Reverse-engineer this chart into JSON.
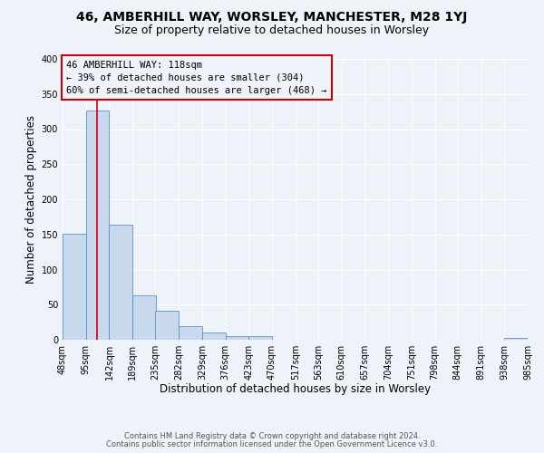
{
  "title": "46, AMBERHILL WAY, WORSLEY, MANCHESTER, M28 1YJ",
  "subtitle": "Size of property relative to detached houses in Worsley",
  "xlabel": "Distribution of detached houses by size in Worsley",
  "ylabel": "Number of detached properties",
  "bar_color": "#c9d9ed",
  "bar_edge_color": "#5b8fc9",
  "background_color": "#eef2f9",
  "grid_color": "#ffffff",
  "annotation_box_edge": "#cc0000",
  "red_line_x": 118,
  "annotation_lines": [
    "46 AMBERHILL WAY: 118sqm",
    "← 39% of detached houses are smaller (304)",
    "60% of semi-detached houses are larger (468) →"
  ],
  "bin_edges": [
    48,
    95,
    142,
    189,
    235,
    282,
    329,
    376,
    423,
    470,
    517,
    563,
    610,
    657,
    704,
    751,
    798,
    844,
    891,
    938,
    985
  ],
  "bin_counts": [
    151,
    327,
    164,
    63,
    41,
    20,
    10,
    5,
    5,
    0,
    0,
    0,
    0,
    0,
    0,
    0,
    0,
    0,
    0,
    3
  ],
  "ylim": [
    0,
    400
  ],
  "yticks": [
    0,
    50,
    100,
    150,
    200,
    250,
    300,
    350,
    400
  ],
  "footer_lines": [
    "Contains HM Land Registry data © Crown copyright and database right 2024.",
    "Contains public sector information licensed under the Open Government Licence v3.0."
  ],
  "title_fontsize": 10,
  "subtitle_fontsize": 9,
  "axis_label_fontsize": 8.5,
  "tick_fontsize": 7,
  "footer_fontsize": 6,
  "annotation_fontsize": 7.5
}
